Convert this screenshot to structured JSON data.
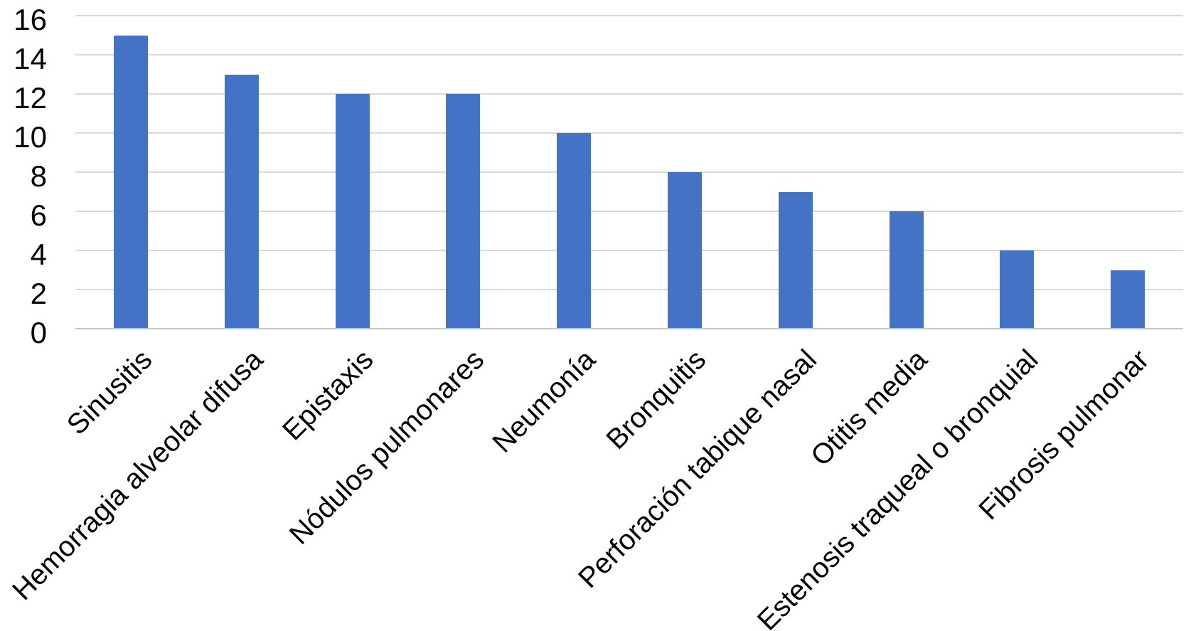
{
  "chart_data": {
    "type": "bar",
    "title": "",
    "xlabel": "",
    "ylabel": "",
    "categories": [
      "Sinusitis",
      "Hemorragia alveolar difusa",
      "Epistaxis",
      "Nódulos pulmonares",
      "Neumonía",
      "Bronquitis",
      "Perforación tabique nasal",
      "Otitis media",
      "Estenosis traqueal o bronquial",
      "Fibrosis pulmonar"
    ],
    "values": [
      15,
      13,
      12,
      12,
      10,
      8,
      7,
      6,
      4,
      3
    ],
    "ylim": [
      0,
      16
    ],
    "yticks": [
      0,
      2,
      4,
      6,
      8,
      10,
      12,
      14,
      16
    ],
    "grid": true,
    "legend": false,
    "x_label_rotation_deg": -45,
    "colors": {
      "bar": "#4472C4",
      "gridline": "#D9D9D9",
      "axis_line": "#C6C6C6",
      "text": "#000000",
      "background": "#FFFFFF"
    }
  }
}
